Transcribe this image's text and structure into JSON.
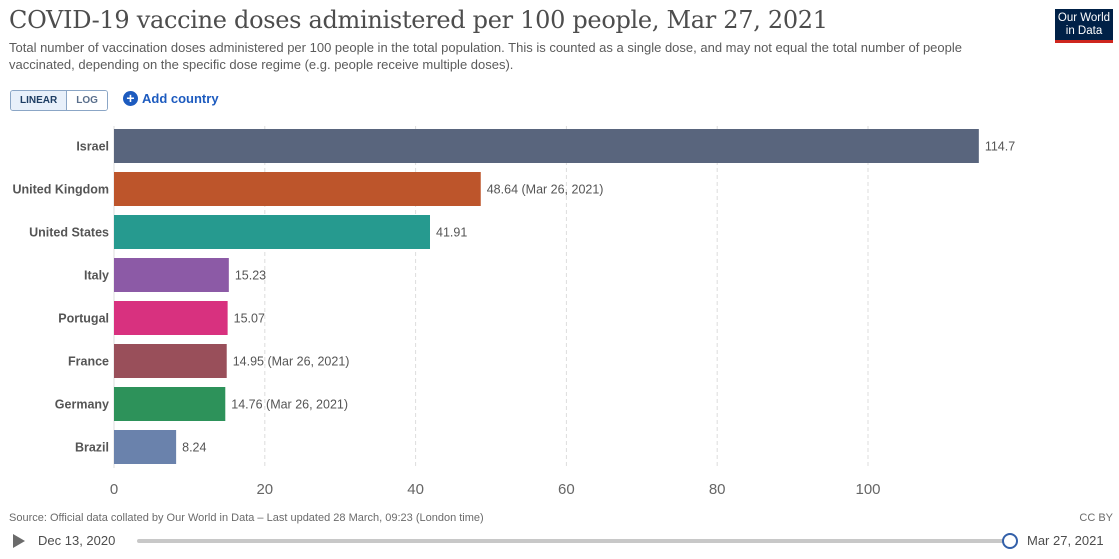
{
  "header": {
    "title": "COVID-19 vaccine doses administered per 100 people, Mar 27, 2021",
    "subtitle": "Total number of vaccination doses administered per 100 people in the total population. This is counted as a single dose, and may not equal the total number of people vaccinated, depending on the specific dose regime (e.g. people receive multiple doses).",
    "logo_line1": "Our World",
    "logo_line2": "in Data"
  },
  "controls": {
    "linear_label": "LINEAR",
    "log_label": "LOG",
    "active_scale": "linear",
    "add_country_label": "Add country"
  },
  "chart_data": {
    "type": "bar",
    "orientation": "horizontal",
    "categories": [
      "Israel",
      "United Kingdom",
      "United States",
      "Italy",
      "Portugal",
      "France",
      "Germany",
      "Brazil"
    ],
    "values": [
      114.7,
      48.64,
      41.91,
      15.23,
      15.07,
      14.95,
      14.76,
      8.24
    ],
    "value_labels": [
      "114.7",
      "48.64 (Mar 26, 2021)",
      "41.91",
      "15.23",
      "15.07",
      "14.95 (Mar 26, 2021)",
      "14.76 (Mar 26, 2021)",
      "8.24"
    ],
    "colors": [
      "#59657d",
      "#bd552b",
      "#269a8f",
      "#8c5aa6",
      "#d8317f",
      "#994f5a",
      "#2d925a",
      "#6a82ac"
    ],
    "xlim": [
      0,
      115
    ],
    "xticks": [
      0,
      20,
      40,
      60,
      80,
      100
    ],
    "grid": true,
    "legend": "none"
  },
  "footer": {
    "source": "Source: Official data collated by Our World in Data – Last updated 28 March, 09:23 (London time)",
    "license": "CC BY"
  },
  "timeline": {
    "start_date": "Dec 13, 2020",
    "end_date": "Mar 27, 2021",
    "position": 1.0
  }
}
